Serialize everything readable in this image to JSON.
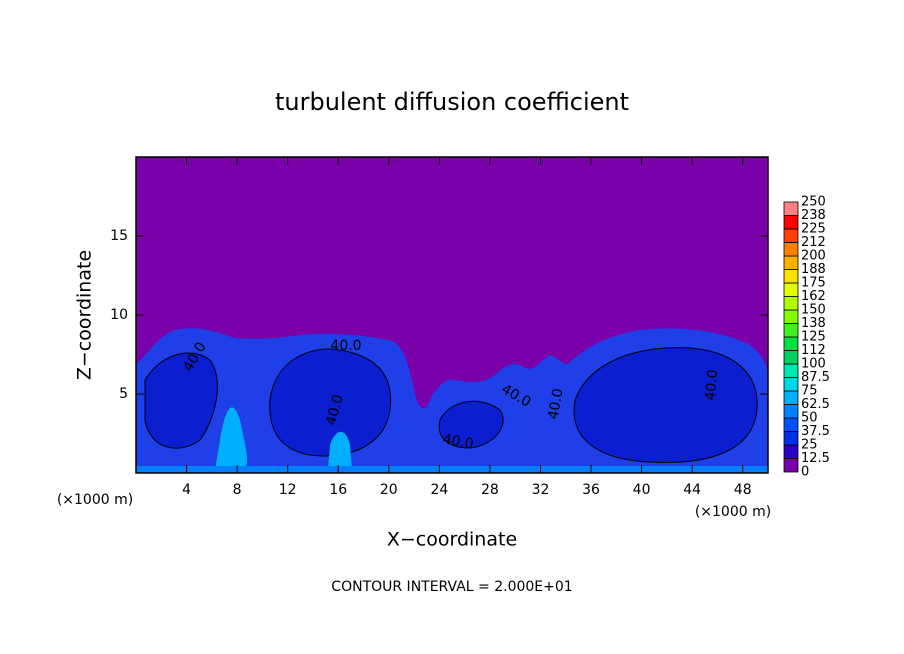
{
  "chart_data": {
    "type": "heatmap",
    "title": "turbulent diffusion coefficient",
    "x_label": "X−coordinate",
    "y_label": "Z−coordinate",
    "x_unit": "(×1000 m)",
    "y_unit": "(×1000 m)",
    "footer": "CONTOUR INTERVAL = 2.000E+01",
    "xlim": [
      0,
      50
    ],
    "xticks": [
      4,
      8,
      12,
      16,
      20,
      24,
      28,
      32,
      36,
      40,
      44,
      48
    ],
    "ylim": [
      0,
      20
    ],
    "yticks": [
      5,
      10,
      15
    ],
    "contour_labels": [
      "40.0",
      "40.0",
      "40.0",
      "40.0",
      "40.0",
      "40.0",
      "40.0"
    ],
    "colorbar": {
      "levels": [
        0,
        12.5,
        25,
        37.5,
        50,
        62.5,
        75,
        87.5,
        100,
        {
          "value": 112.5,
          "label": "112"
        },
        125,
        {
          "value": 137.5,
          "label": "138"
        },
        150,
        {
          "value": 162.5,
          "label": "162"
        },
        175,
        {
          "value": 187.5,
          "label": "188"
        },
        200,
        {
          "value": 212.5,
          "label": "212"
        },
        225,
        {
          "value": 237.5,
          "label": "238"
        },
        250
      ],
      "colors": [
        "#7a00aa",
        "#2a00c8",
        "#0030e6",
        "#0050ff",
        "#0080ff",
        "#00b0ff",
        "#00d8e8",
        "#00e8b0",
        "#00d060",
        "#00e040",
        "#40f020",
        "#80ff00",
        "#b0ff00",
        "#e0ff00",
        "#ffe000",
        "#ffb000",
        "#ff8000",
        "#ff4000",
        "#ff0000",
        "#ff8080"
      ]
    }
  }
}
